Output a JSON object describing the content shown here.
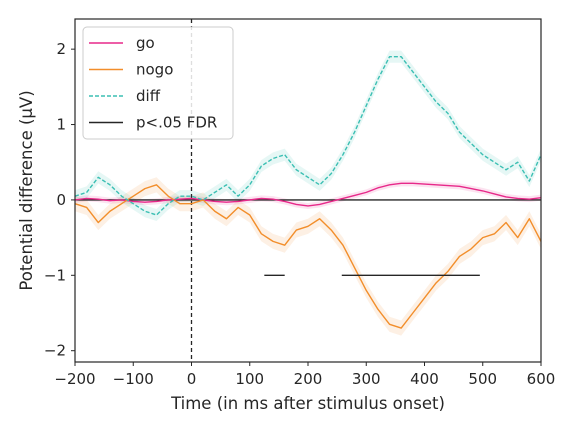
{
  "chart_data": {
    "type": "line",
    "xlabel": "Time (in ms after stimulus onset)",
    "ylabel": "Potential difference (μV)",
    "xlim": [
      -200,
      600
    ],
    "ylim": [
      -2.15,
      2.4
    ],
    "xticks": [
      -200,
      -100,
      0,
      100,
      200,
      300,
      400,
      500,
      600
    ],
    "yticks": [
      -2,
      -1,
      0,
      1,
      2
    ],
    "grid": false,
    "legend_position": "top-left",
    "zero_line": 0,
    "stimulus_onset": 0,
    "series": [
      {
        "name": "go",
        "color": "#e7298a",
        "style": "solid",
        "error_band": 0.04,
        "x": [
          -200,
          -180,
          -160,
          -140,
          -120,
          -100,
          -80,
          -60,
          -40,
          -20,
          0,
          20,
          40,
          60,
          80,
          100,
          120,
          140,
          160,
          180,
          200,
          220,
          240,
          260,
          280,
          300,
          320,
          340,
          360,
          380,
          400,
          420,
          440,
          460,
          480,
          500,
          520,
          540,
          560,
          580,
          600
        ],
        "y": [
          0.0,
          0.02,
          0.01,
          -0.01,
          0.0,
          -0.02,
          -0.03,
          -0.02,
          0.0,
          0.01,
          0.02,
          0.0,
          -0.02,
          -0.03,
          -0.02,
          0.0,
          0.02,
          0.01,
          -0.02,
          -0.06,
          -0.08,
          -0.06,
          -0.02,
          0.02,
          0.06,
          0.1,
          0.16,
          0.2,
          0.22,
          0.22,
          0.21,
          0.2,
          0.19,
          0.18,
          0.15,
          0.12,
          0.08,
          0.04,
          0.02,
          0.01,
          0.03
        ]
      },
      {
        "name": "nogo",
        "color": "#f28e2b",
        "style": "solid",
        "error_band": 0.1,
        "x": [
          -200,
          -180,
          -160,
          -140,
          -120,
          -100,
          -80,
          -60,
          -40,
          -20,
          0,
          20,
          40,
          60,
          80,
          100,
          120,
          140,
          160,
          180,
          200,
          220,
          240,
          260,
          280,
          300,
          320,
          340,
          360,
          380,
          400,
          420,
          440,
          460,
          480,
          500,
          520,
          540,
          560,
          580,
          600
        ],
        "y": [
          -0.05,
          -0.1,
          -0.3,
          -0.15,
          -0.05,
          0.05,
          0.15,
          0.2,
          0.05,
          -0.05,
          -0.05,
          0.0,
          -0.15,
          -0.25,
          -0.1,
          -0.2,
          -0.45,
          -0.55,
          -0.6,
          -0.4,
          -0.35,
          -0.25,
          -0.4,
          -0.6,
          -0.9,
          -1.2,
          -1.45,
          -1.65,
          -1.7,
          -1.5,
          -1.3,
          -1.1,
          -0.95,
          -0.75,
          -0.65,
          -0.5,
          -0.45,
          -0.3,
          -0.5,
          -0.25,
          -0.55
        ]
      },
      {
        "name": "diff",
        "color": "#3bbfb3",
        "style": "dashed",
        "error_band": 0.08,
        "x": [
          -200,
          -180,
          -160,
          -140,
          -120,
          -100,
          -80,
          -60,
          -40,
          -20,
          0,
          20,
          40,
          60,
          80,
          100,
          120,
          140,
          160,
          180,
          200,
          220,
          240,
          260,
          280,
          300,
          320,
          340,
          360,
          380,
          400,
          420,
          440,
          460,
          480,
          500,
          520,
          540,
          560,
          580,
          600
        ],
        "y": [
          0.05,
          0.1,
          0.3,
          0.2,
          0.05,
          -0.05,
          -0.15,
          -0.2,
          -0.05,
          0.05,
          0.05,
          0.0,
          0.1,
          0.2,
          0.05,
          0.2,
          0.45,
          0.55,
          0.6,
          0.4,
          0.3,
          0.2,
          0.35,
          0.6,
          0.9,
          1.25,
          1.6,
          1.9,
          1.9,
          1.7,
          1.5,
          1.3,
          1.15,
          0.9,
          0.75,
          0.6,
          0.5,
          0.4,
          0.5,
          0.25,
          0.6
        ]
      }
    ],
    "significance_bars": [
      {
        "label": "p<.05 FDR",
        "y": -1,
        "color": "#262626",
        "segments": [
          [
            125,
            160
          ],
          [
            258,
            495
          ]
        ]
      }
    ],
    "legend": [
      {
        "label": "go",
        "color": "#e7298a",
        "style": "solid"
      },
      {
        "label": "nogo",
        "color": "#f28e2b",
        "style": "solid"
      },
      {
        "label": "diff",
        "color": "#3bbfb3",
        "style": "dashed"
      },
      {
        "label": "p<.05 FDR",
        "color": "#262626",
        "style": "solid"
      }
    ]
  }
}
